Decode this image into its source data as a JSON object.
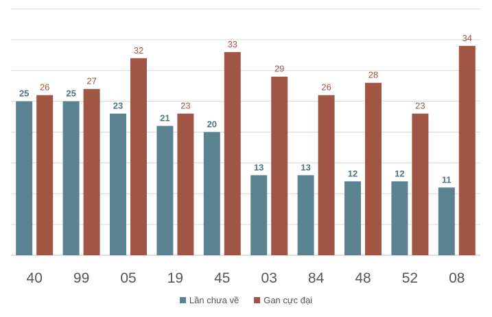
{
  "chart_data": {
    "type": "bar",
    "title": "",
    "xlabel": "",
    "ylabel": "",
    "ylim": [
      0,
      40
    ],
    "grid": true,
    "legend_position": "bottom",
    "categories": [
      "40",
      "99",
      "05",
      "19",
      "45",
      "03",
      "84",
      "48",
      "52",
      "08"
    ],
    "series": [
      {
        "name": "Lần chưa về",
        "color": "#5b8290",
        "label_color": "#4e7482",
        "values": [
          25,
          25,
          23,
          21,
          20,
          13,
          13,
          12,
          12,
          11
        ]
      },
      {
        "name": "Gan cực đại",
        "color": "#a15545",
        "label_color": "#a15545",
        "values": [
          26,
          27,
          32,
          23,
          33,
          29,
          26,
          28,
          23,
          34
        ]
      }
    ]
  }
}
